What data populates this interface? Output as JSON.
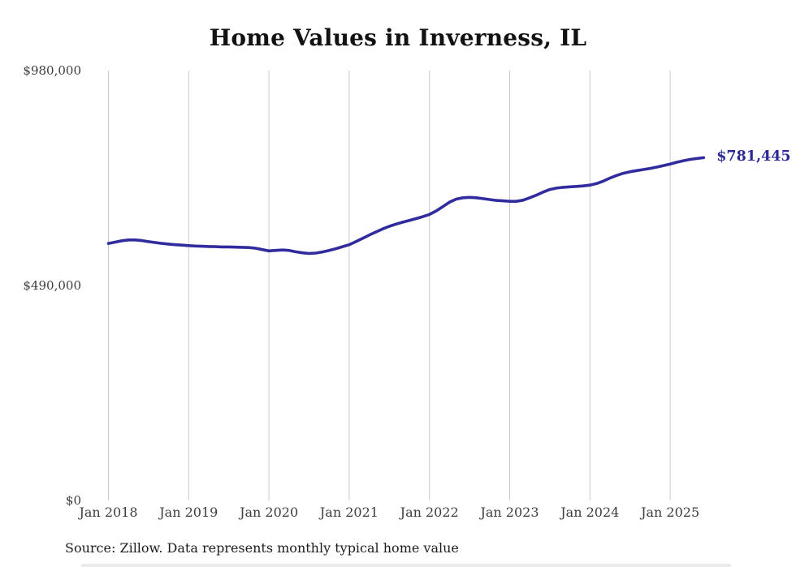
{
  "page": {
    "title": "Home Values in Inverness, IL",
    "source_note": "Source: Zillow. Data represents monthly typical home value"
  },
  "chart_data": {
    "type": "line",
    "title": "Home Values in Inverness, IL",
    "ylabel": "",
    "xlabel": "",
    "ylim": [
      0,
      980000
    ],
    "grid": "vertical-only",
    "legend_position": "none",
    "colors": {
      "line": "#302c9e",
      "end_label": "#2c2a96",
      "gridline": "#c9c9c9",
      "tick_text": "#3d3d3d",
      "title_text": "#121212"
    },
    "y_ticks": [
      {
        "label": "$980,000",
        "value": 980000
      },
      {
        "label": "$490,000",
        "value": 490000
      },
      {
        "label": "$0",
        "value": 0
      }
    ],
    "x_ticks": [
      "Jan 2018",
      "Jan 2019",
      "Jan 2020",
      "Jan 2021",
      "Jan 2022",
      "Jan 2023",
      "Jan 2024",
      "Jan 2025"
    ],
    "end_label": "$781,445",
    "end_value": 781445,
    "series": [
      {
        "name": "Monthly typical home value",
        "x": [
          "2018-01",
          "2018-02",
          "2018-03",
          "2018-04",
          "2018-05",
          "2018-06",
          "2018-07",
          "2018-08",
          "2018-09",
          "2018-10",
          "2018-11",
          "2018-12",
          "2019-01",
          "2019-02",
          "2019-03",
          "2019-04",
          "2019-05",
          "2019-06",
          "2019-07",
          "2019-08",
          "2019-09",
          "2019-10",
          "2019-11",
          "2019-12",
          "2020-01",
          "2020-02",
          "2020-03",
          "2020-04",
          "2020-05",
          "2020-06",
          "2020-07",
          "2020-08",
          "2020-09",
          "2020-10",
          "2020-11",
          "2020-12",
          "2021-01",
          "2021-02",
          "2021-03",
          "2021-04",
          "2021-05",
          "2021-06",
          "2021-07",
          "2021-08",
          "2021-09",
          "2021-10",
          "2021-11",
          "2021-12",
          "2022-01",
          "2022-02",
          "2022-03",
          "2022-04",
          "2022-05",
          "2022-06",
          "2022-07",
          "2022-08",
          "2022-09",
          "2022-10",
          "2022-11",
          "2022-12",
          "2023-01",
          "2023-02",
          "2023-03",
          "2023-04",
          "2023-05",
          "2023-06",
          "2023-07",
          "2023-08",
          "2023-09",
          "2023-10",
          "2023-11",
          "2023-12",
          "2024-01",
          "2024-02",
          "2024-03",
          "2024-04",
          "2024-05",
          "2024-06",
          "2024-07",
          "2024-08",
          "2024-09",
          "2024-10",
          "2024-11",
          "2024-12",
          "2025-01",
          "2025-02",
          "2025-03",
          "2025-04",
          "2025-05",
          "2025-06"
        ],
        "values": [
          586000,
          589000,
          592000,
          594000,
          594000,
          592500,
          590000,
          588000,
          586000,
          584500,
          583000,
          582000,
          581000,
          580000,
          579500,
          579000,
          578500,
          578000,
          578000,
          577500,
          577000,
          576500,
          575000,
          572000,
          569000,
          570000,
          571000,
          570000,
          567000,
          564500,
          563000,
          564000,
          566500,
          570000,
          574000,
          578500,
          583000,
          590000,
          597500,
          605000,
          612000,
          619000,
          625000,
          630000,
          634500,
          638500,
          642500,
          647000,
          652000,
          660000,
          670000,
          680000,
          687000,
          690000,
          691000,
          690000,
          688000,
          686000,
          684000,
          683000,
          682000,
          682000,
          684500,
          690000,
          696000,
          703000,
          709000,
          712000,
          714000,
          715000,
          716000,
          717000,
          719000,
          722500,
          728000,
          735000,
          741000,
          746000,
          749500,
          752000,
          754500,
          757000,
          760000,
          763500,
          767000,
          771000,
          774500,
          777500,
          779500,
          781445
        ]
      }
    ]
  }
}
